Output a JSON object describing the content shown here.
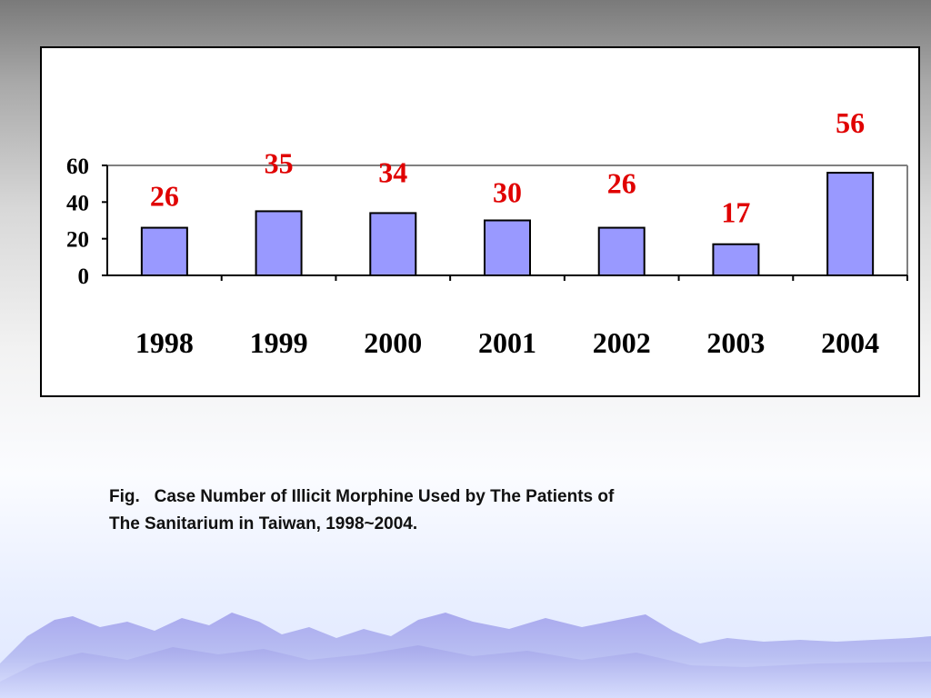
{
  "chart_data": {
    "type": "bar",
    "categories": [
      "1998",
      "1999",
      "2000",
      "2001",
      "2002",
      "2003",
      "2004"
    ],
    "values": [
      26,
      35,
      34,
      30,
      26,
      17,
      56
    ],
    "data_labels": [
      "26",
      "35",
      "34",
      "30",
      "26",
      "17",
      "56"
    ],
    "yticks": [
      "0",
      "20",
      "40",
      "60"
    ],
    "ylim": [
      0,
      60
    ],
    "title": "",
    "xlabel": "",
    "ylabel": "",
    "grid": false,
    "legend": "none",
    "colors": {
      "bar_fill": "#9999ff",
      "bar_stroke": "#000000",
      "data_label": "#e00000",
      "plot_border": "#808080"
    }
  },
  "caption": {
    "line1": "Fig.   Case Number of Illicit Morphine Used by The Patients of",
    "line2": "The Sanitarium in Taiwan, 1998~2004."
  }
}
